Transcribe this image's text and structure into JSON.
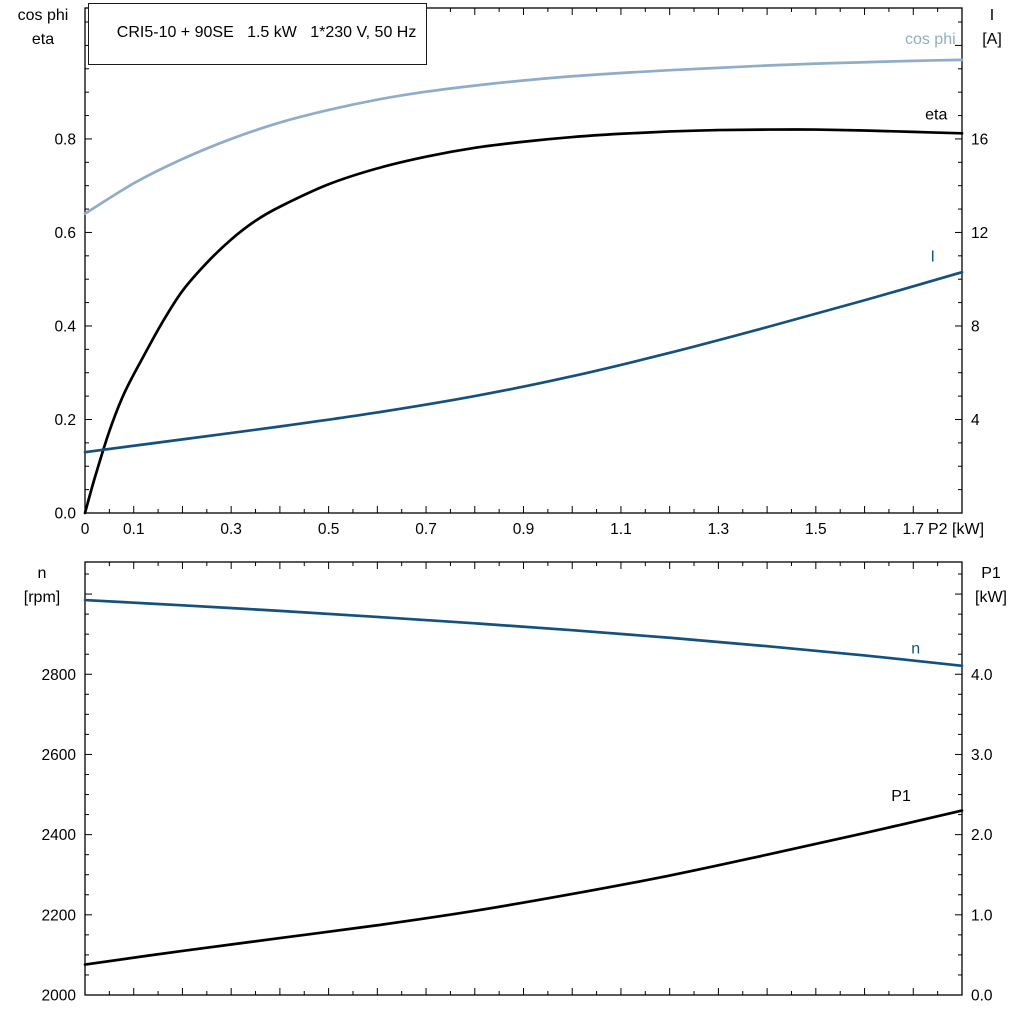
{
  "title_box": {
    "text": "CRI5-10 + 90SE   1.5 kW   1*230 V, 50 Hz"
  },
  "colors": {
    "light_blue": "#8fadc9",
    "dark_blue": "#15517f",
    "black": "#000000"
  },
  "chart_data": [
    {
      "type": "line",
      "id": "upper-motor-chart",
      "x_axis": {
        "min": 0,
        "max": 1.8,
        "minor_step": 0.05,
        "major_step": 0.1,
        "labels": [
          [
            0,
            "0"
          ],
          [
            0.1,
            "0.1"
          ],
          [
            0.3,
            "0.3"
          ],
          [
            0.5,
            "0.5"
          ],
          [
            0.7,
            "0.7"
          ],
          [
            0.9,
            "0.9"
          ],
          [
            1.1,
            "1.1"
          ],
          [
            1.3,
            "1.3"
          ],
          [
            1.5,
            "1.5"
          ],
          [
            1.7,
            "1.7"
          ]
        ],
        "unit_label": "P2 [kW]"
      },
      "left_axis": {
        "title_lines": [
          "cos phi",
          "eta"
        ],
        "min": 0,
        "max": 1.08,
        "minor_step": 0.05,
        "major_step": 0.2,
        "labels": [
          [
            0,
            "0.0"
          ],
          [
            0.2,
            "0.2"
          ],
          [
            0.4,
            "0.4"
          ],
          [
            0.6,
            "0.6"
          ],
          [
            0.8,
            "0.8"
          ]
        ]
      },
      "right_axis": {
        "title_lines": [
          "I",
          "[A]"
        ],
        "min": 0,
        "max": 21.6,
        "minor_step": 1,
        "major_step": 4,
        "labels": [
          [
            4,
            "4"
          ],
          [
            8,
            "8"
          ],
          [
            12,
            "12"
          ],
          [
            16,
            "16"
          ]
        ]
      },
      "series": [
        {
          "key": "cos-phi",
          "name": "cos phi",
          "axis": "left",
          "color": "light_blue",
          "x": [
            0,
            0.1,
            0.2,
            0.3,
            0.4,
            0.5,
            0.6,
            0.7,
            0.8,
            0.9,
            1.0,
            1.1,
            1.2,
            1.3,
            1.4,
            1.5,
            1.6,
            1.7,
            1.8
          ],
          "y": [
            0.64,
            0.705,
            0.757,
            0.8,
            0.835,
            0.862,
            0.884,
            0.901,
            0.914,
            0.925,
            0.934,
            0.941,
            0.947,
            0.952,
            0.957,
            0.961,
            0.964,
            0.967,
            0.969
          ],
          "label": {
            "text": "cos phi",
            "x": 1.787,
            "y": 1.003,
            "anchor": "end"
          }
        },
        {
          "key": "eta",
          "name": "eta",
          "axis": "left",
          "color": "black",
          "x": [
            0,
            0.02,
            0.05,
            0.08,
            0.12,
            0.16,
            0.2,
            0.25,
            0.3,
            0.35,
            0.4,
            0.5,
            0.6,
            0.7,
            0.8,
            0.9,
            1.0,
            1.1,
            1.2,
            1.3,
            1.4,
            1.5,
            1.6,
            1.7,
            1.8
          ],
          "y": [
            0,
            0.075,
            0.175,
            0.255,
            0.335,
            0.41,
            0.475,
            0.535,
            0.585,
            0.625,
            0.655,
            0.703,
            0.737,
            0.762,
            0.781,
            0.794,
            0.804,
            0.811,
            0.816,
            0.819,
            0.82,
            0.82,
            0.818,
            0.815,
            0.812
          ],
          "label": {
            "text": "eta",
            "x": 1.77,
            "y": 0.842,
            "anchor": "end"
          }
        },
        {
          "key": "current",
          "name": "I",
          "axis": "right",
          "color": "dark_blue",
          "x": [
            0,
            0.2,
            0.4,
            0.6,
            0.8,
            1.0,
            1.2,
            1.4,
            1.6,
            1.8
          ],
          "y": [
            2.6,
            3.15,
            3.7,
            4.3,
            5.0,
            5.85,
            6.85,
            7.95,
            9.1,
            10.3
          ],
          "label": {
            "text": "I",
            "x": 1.74,
            "y": 10.75,
            "anchor": "middle"
          }
        }
      ]
    },
    {
      "type": "line",
      "id": "lower-motor-chart",
      "x_axis": {
        "min": 0,
        "max": 1.8,
        "minor_step": 0.05,
        "major_step": 0.1,
        "labels": [],
        "unit_label": ""
      },
      "left_axis": {
        "title_lines": [
          "n",
          "[rpm]"
        ],
        "min": 2000,
        "max": 3080,
        "minor_step": 50,
        "major_step": 200,
        "labels": [
          [
            2000,
            "2000"
          ],
          [
            2200,
            "2200"
          ],
          [
            2400,
            "2400"
          ],
          [
            2600,
            "2600"
          ],
          [
            2800,
            "2800"
          ]
        ]
      },
      "right_axis": {
        "title_lines": [
          "P1",
          "[kW]"
        ],
        "min": 0,
        "max": 5.4,
        "minor_step": 0.25,
        "major_step": 1,
        "labels": [
          [
            0,
            "0.0"
          ],
          [
            1,
            "1.0"
          ],
          [
            2,
            "2.0"
          ],
          [
            3,
            "3.0"
          ],
          [
            4,
            "4.0"
          ]
        ]
      },
      "series": [
        {
          "key": "speed",
          "name": "n",
          "axis": "left",
          "color": "dark_blue",
          "x": [
            0,
            0.2,
            0.4,
            0.6,
            0.8,
            1.0,
            1.2,
            1.4,
            1.6,
            1.8
          ],
          "y": [
            2985,
            2972,
            2958,
            2943,
            2927,
            2910,
            2891,
            2870,
            2847,
            2821
          ],
          "label": {
            "text": "n",
            "x": 1.705,
            "y": 2852,
            "anchor": "middle"
          }
        },
        {
          "key": "input-power",
          "name": "P1",
          "axis": "right",
          "color": "black",
          "x": [
            0,
            0.2,
            0.4,
            0.6,
            0.8,
            1.0,
            1.2,
            1.4,
            1.6,
            1.8
          ],
          "y": [
            0.38,
            0.55,
            0.71,
            0.87,
            1.05,
            1.26,
            1.49,
            1.75,
            2.02,
            2.3
          ],
          "label": {
            "text": "P1",
            "x": 1.675,
            "y": 2.42,
            "anchor": "middle"
          }
        }
      ]
    }
  ]
}
